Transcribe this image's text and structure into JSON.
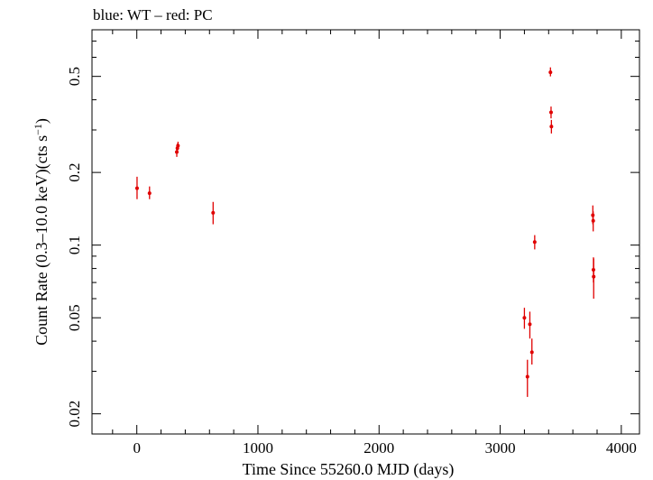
{
  "chart_data": {
    "type": "scatter",
    "title": "blue: WT – red: PC",
    "xlabel": "Time Since 55260.0 MJD (days)",
    "ylabel_main": "Count Rate (0.3–10.0 keV)(cts s",
    "ylabel_sup": "−1",
    "ylabel_end": ")",
    "xlim": [
      -370,
      4150
    ],
    "ylim": [
      0.0165,
      0.78
    ],
    "yscale": "log",
    "x_ticks": [
      0,
      1000,
      2000,
      3000,
      4000
    ],
    "x_tick_labels": [
      "0",
      "1000",
      "2000",
      "3000",
      "4000"
    ],
    "x_minor_step": 200,
    "y_ticks": [
      0.02,
      0.05,
      0.1,
      0.2,
      0.5
    ],
    "y_tick_labels": [
      "0.02",
      "0.05",
      "0.1",
      "0.2",
      "0.5"
    ],
    "y_minor": [
      0.03,
      0.04,
      0.06,
      0.07,
      0.08,
      0.09,
      0.3,
      0.4,
      0.6,
      0.7
    ],
    "grid": false,
    "series": [
      {
        "color": "#e00000",
        "points": [
          {
            "x": 2,
            "y": 0.172,
            "ylo": 0.155,
            "yhi": 0.192
          },
          {
            "x": 105,
            "y": 0.164,
            "ylo": 0.155,
            "yhi": 0.175
          },
          {
            "x": 330,
            "y": 0.243,
            "ylo": 0.232,
            "yhi": 0.255
          },
          {
            "x": 335,
            "y": 0.252,
            "ylo": 0.242,
            "yhi": 0.263
          },
          {
            "x": 340,
            "y": 0.258,
            "ylo": 0.248,
            "yhi": 0.268
          },
          {
            "x": 630,
            "y": 0.136,
            "ylo": 0.122,
            "yhi": 0.151
          },
          {
            "x": 3200,
            "y": 0.05,
            "ylo": 0.045,
            "yhi": 0.055
          },
          {
            "x": 3225,
            "y": 0.0285,
            "ylo": 0.0235,
            "yhi": 0.0335
          },
          {
            "x": 3245,
            "y": 0.047,
            "ylo": 0.041,
            "yhi": 0.053
          },
          {
            "x": 3262,
            "y": 0.036,
            "ylo": 0.032,
            "yhi": 0.041
          },
          {
            "x": 3285,
            "y": 0.103,
            "ylo": 0.096,
            "yhi": 0.11
          },
          {
            "x": 3415,
            "y": 0.52,
            "ylo": 0.5,
            "yhi": 0.545
          },
          {
            "x": 3420,
            "y": 0.355,
            "ylo": 0.335,
            "yhi": 0.375
          },
          {
            "x": 3423,
            "y": 0.31,
            "ylo": 0.29,
            "yhi": 0.33
          },
          {
            "x": 3765,
            "y": 0.133,
            "ylo": 0.122,
            "yhi": 0.146
          },
          {
            "x": 3768,
            "y": 0.126,
            "ylo": 0.114,
            "yhi": 0.138
          },
          {
            "x": 3770,
            "y": 0.079,
            "ylo": 0.07,
            "yhi": 0.089
          },
          {
            "x": 3772,
            "y": 0.074,
            "ylo": 0.06,
            "yhi": 0.088
          }
        ]
      }
    ]
  }
}
